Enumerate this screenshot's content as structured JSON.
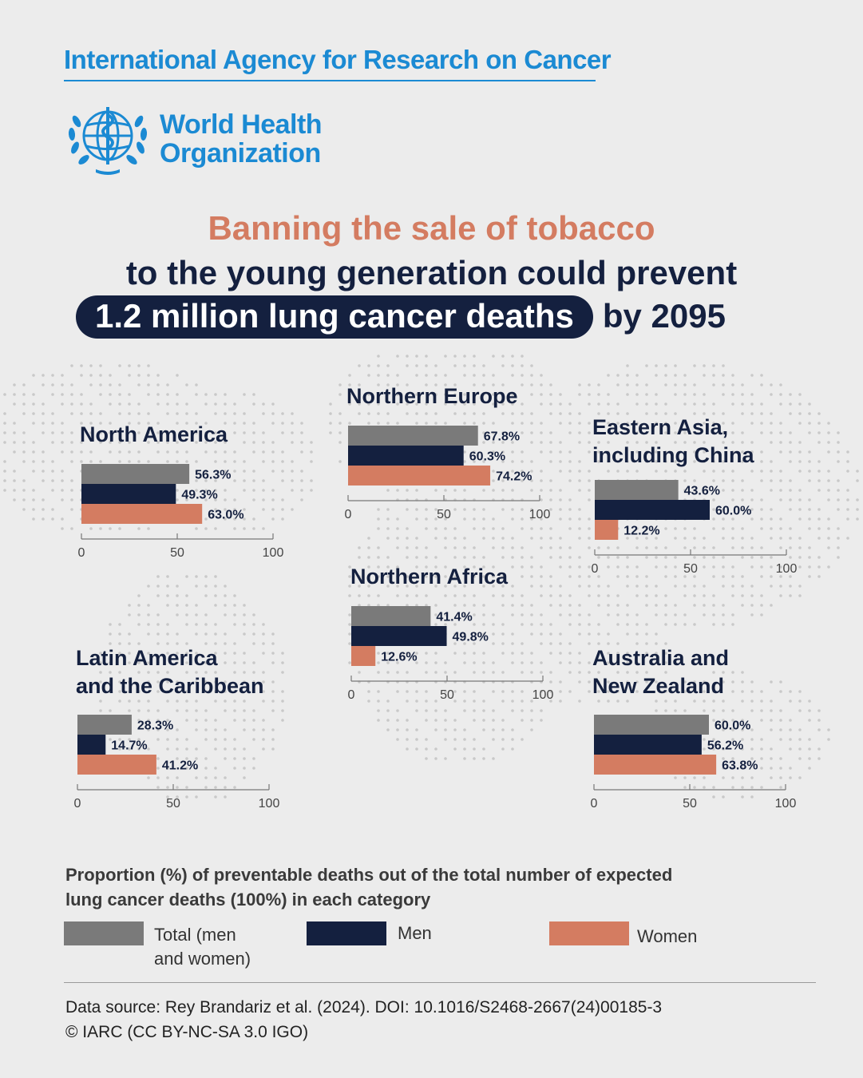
{
  "header": {
    "agency": "International Agency for Research on Cancer",
    "who_line1": "World Health",
    "who_line2": "Organization"
  },
  "headline": {
    "line1": "Banning the sale of tobacco",
    "line2": "to the young generation could prevent",
    "highlight": "1.2 million lung cancer deaths",
    "line3_suffix": "by 2095"
  },
  "colors": {
    "total": "#7a7a7a",
    "men": "#14203f",
    "women": "#d47c61",
    "accent": "#1b8ad3"
  },
  "chart_data": [
    {
      "type": "bar",
      "title": "North America",
      "categories": [
        "Total (men and women)",
        "Men",
        "Women"
      ],
      "values": [
        56.3,
        49.3,
        63.0
      ],
      "labels": [
        "56.3%",
        "49.3%",
        "63.0%"
      ],
      "xlim": [
        0,
        100
      ],
      "ticks": [
        "0",
        "50",
        "100"
      ]
    },
    {
      "type": "bar",
      "title": "Northern Europe",
      "categories": [
        "Total (men and women)",
        "Men",
        "Women"
      ],
      "values": [
        67.8,
        60.3,
        74.2
      ],
      "labels": [
        "67.8%",
        "60.3%",
        "74.2%"
      ],
      "xlim": [
        0,
        100
      ],
      "ticks": [
        "0",
        "50",
        "100"
      ]
    },
    {
      "type": "bar",
      "title": "Eastern Asia, including China",
      "categories": [
        "Total (men and women)",
        "Men",
        "Women"
      ],
      "values": [
        43.6,
        60.0,
        12.2
      ],
      "labels": [
        "43.6%",
        "60.0%",
        "12.2%"
      ],
      "xlim": [
        0,
        100
      ],
      "ticks": [
        "0",
        "50",
        "100"
      ]
    },
    {
      "type": "bar",
      "title": "Northern Africa",
      "categories": [
        "Total (men and women)",
        "Men",
        "Women"
      ],
      "values": [
        41.4,
        49.8,
        12.6
      ],
      "labels": [
        "41.4%",
        "49.8%",
        "12.6%"
      ],
      "xlim": [
        0,
        100
      ],
      "ticks": [
        "0",
        "50",
        "100"
      ]
    },
    {
      "type": "bar",
      "title": "Latin America and the Caribbean",
      "categories": [
        "Total (men and women)",
        "Men",
        "Women"
      ],
      "values": [
        28.3,
        14.7,
        41.2
      ],
      "labels": [
        "28.3%",
        "14.7%",
        "41.2%"
      ],
      "xlim": [
        0,
        100
      ],
      "ticks": [
        "0",
        "50",
        "100"
      ]
    },
    {
      "type": "bar",
      "title": "Australia and New Zealand",
      "categories": [
        "Total (men and women)",
        "Men",
        "Women"
      ],
      "values": [
        60.0,
        56.2,
        63.8
      ],
      "labels": [
        "60.0%",
        "56.2%",
        "63.8%"
      ],
      "xlim": [
        0,
        100
      ],
      "ticks": [
        "0",
        "50",
        "100"
      ]
    }
  ],
  "region_titles": {
    "north_america": "North America",
    "northern_europe": "Northern Europe",
    "eastern_asia_1": "Eastern Asia,",
    "eastern_asia_2": "including China",
    "northern_africa": "Northern Africa",
    "latin_america_1": "Latin America",
    "latin_america_2": "and the Caribbean",
    "australia_1": "Australia and",
    "australia_2": "New Zealand"
  },
  "legend": {
    "title_line1": "Proportion (%) of preventable deaths out of the total number of expected",
    "title_line2": "lung cancer deaths (100%) in each category",
    "total_line1": "Total (men",
    "total_line2": "and women)",
    "men": "Men",
    "women": "Women"
  },
  "footer": {
    "source": "Data source: Rey Brandariz et al. (2024). DOI: 10.1016/S2468-2667(24)00185-3",
    "license": "© IARC (CC BY-NC-SA 3.0 IGO)"
  }
}
